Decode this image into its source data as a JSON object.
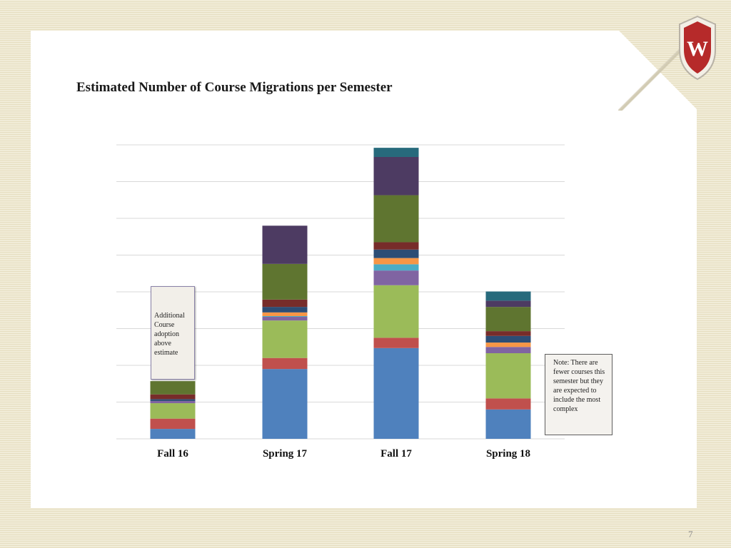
{
  "title": "Estimated Number of Course Migrations per Semester",
  "page_number": "7",
  "logo": {
    "letter": "W"
  },
  "callout": {
    "text": "Additional Course adoption above estimate"
  },
  "note": {
    "text": "Note: There are fewer courses this semester but they are expected to include the most complex"
  },
  "colors": {
    "series": [
      "#4f81bd",
      "#c0504d",
      "#9bbb59",
      "#8064a2",
      "#4bacc6",
      "#f79646",
      "#2c4d75",
      "#772c2a",
      "#5f7530",
      "#4d3b62",
      "#276a7c"
    ],
    "grid": "#d9d9d9"
  },
  "chart_data": {
    "type": "bar",
    "stacked": true,
    "title": "Estimated Number of Course Migrations per Semester",
    "xlabel": "",
    "ylabel": "",
    "categories": [
      "Fall 16",
      "Spring 17",
      "Fall 17",
      "Spring 18"
    ],
    "ylim": [
      0,
      8
    ],
    "y_ticks_shown": false,
    "grid": true,
    "series": [
      {
        "values": [
          0.27,
          1.9,
          2.47,
          0.8
        ]
      },
      {
        "values": [
          0.28,
          0.3,
          0.28,
          0.3
        ]
      },
      {
        "values": [
          0.42,
          1.02,
          1.43,
          1.23
        ]
      },
      {
        "values": [
          0.06,
          0.1,
          0.4,
          0.17
        ]
      },
      {
        "values": [
          0,
          0.02,
          0.17,
          0
        ]
      },
      {
        "values": [
          0,
          0.1,
          0.17,
          0.12
        ]
      },
      {
        "values": [
          0.05,
          0.15,
          0.23,
          0.18
        ]
      },
      {
        "values": [
          0.13,
          0.2,
          0.2,
          0.13
        ]
      },
      {
        "values": [
          0.36,
          0.97,
          1.28,
          0.66
        ]
      },
      {
        "values": [
          0,
          1.04,
          1.04,
          0.17
        ]
      },
      {
        "values": [
          0,
          0,
          0.25,
          0.25
        ]
      }
    ],
    "overlay": {
      "category": "Fall 16",
      "base": 1.63,
      "top": 4.19,
      "label": "Additional Course adoption above estimate"
    }
  }
}
